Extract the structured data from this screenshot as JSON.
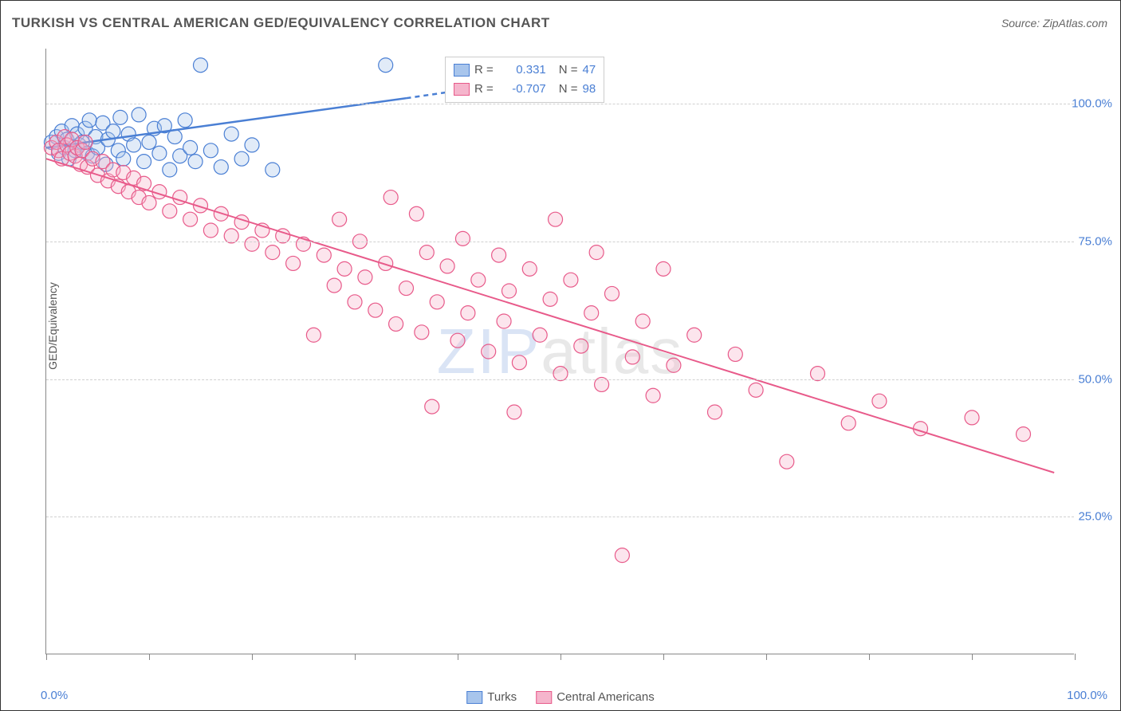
{
  "title": "TURKISH VS CENTRAL AMERICAN GED/EQUIVALENCY CORRELATION CHART",
  "source": "Source: ZipAtlas.com",
  "y_label": "GED/Equivalency",
  "watermark_a": "ZIP",
  "watermark_b": "atlas",
  "chart": {
    "type": "scatter",
    "background_color": "#ffffff",
    "grid_color": "#d0d0d0",
    "axis_color": "#888888",
    "xlim": [
      0,
      100
    ],
    "ylim": [
      0,
      110
    ],
    "xtick_labels": [
      {
        "pos": 0,
        "label": "0.0%",
        "show_label": true
      },
      {
        "pos": 10,
        "show_label": false
      },
      {
        "pos": 20,
        "show_label": false
      },
      {
        "pos": 30,
        "show_label": false
      },
      {
        "pos": 40,
        "show_label": false
      },
      {
        "pos": 50,
        "show_label": false
      },
      {
        "pos": 60,
        "show_label": false
      },
      {
        "pos": 70,
        "show_label": false
      },
      {
        "pos": 80,
        "show_label": false
      },
      {
        "pos": 90,
        "show_label": false
      },
      {
        "pos": 100,
        "label": "100.0%",
        "show_label": true
      }
    ],
    "ytick_labels": [
      {
        "pos": 25,
        "label": "25.0%"
      },
      {
        "pos": 50,
        "label": "50.0%"
      },
      {
        "pos": 75,
        "label": "75.0%"
      },
      {
        "pos": 100,
        "label": "100.0%"
      }
    ],
    "marker_radius": 9,
    "marker_fill_opacity": 0.35,
    "marker_stroke_width": 1.2,
    "series": [
      {
        "name": "Turks",
        "color": "#4a7fd4",
        "fill": "#a8c5ec",
        "R": "0.331",
        "N": "47",
        "trend_solid": {
          "x1": 0,
          "y1": 92,
          "x2": 35,
          "y2": 101
        },
        "trend_dashed": {
          "x1": 35,
          "y1": 101,
          "x2": 48,
          "y2": 104.5
        },
        "trend_width": 2.5,
        "points": [
          [
            0.5,
            93
          ],
          [
            1,
            94
          ],
          [
            1.2,
            91
          ],
          [
            1.5,
            95
          ],
          [
            1.8,
            92
          ],
          [
            2,
            93.5
          ],
          [
            2.2,
            90
          ],
          [
            2.5,
            96
          ],
          [
            2.8,
            91.5
          ],
          [
            3,
            94.5
          ],
          [
            3.2,
            92.5
          ],
          [
            3.5,
            93
          ],
          [
            3.8,
            95.5
          ],
          [
            4,
            91
          ],
          [
            4.2,
            97
          ],
          [
            4.5,
            90.5
          ],
          [
            4.8,
            94
          ],
          [
            5,
            92
          ],
          [
            5.5,
            96.5
          ],
          [
            5.8,
            89
          ],
          [
            6,
            93.5
          ],
          [
            6.5,
            95
          ],
          [
            7,
            91.5
          ],
          [
            7.2,
            97.5
          ],
          [
            7.5,
            90
          ],
          [
            8,
            94.5
          ],
          [
            8.5,
            92.5
          ],
          [
            9,
            98
          ],
          [
            9.5,
            89.5
          ],
          [
            10,
            93
          ],
          [
            10.5,
            95.5
          ],
          [
            11,
            91
          ],
          [
            11.5,
            96
          ],
          [
            12,
            88
          ],
          [
            12.5,
            94
          ],
          [
            13,
            90.5
          ],
          [
            13.5,
            97
          ],
          [
            14,
            92
          ],
          [
            14.5,
            89.5
          ],
          [
            15,
            107
          ],
          [
            16,
            91.5
          ],
          [
            17,
            88.5
          ],
          [
            18,
            94.5
          ],
          [
            19,
            90
          ],
          [
            20,
            92.5
          ],
          [
            22,
            88
          ],
          [
            33,
            107
          ]
        ]
      },
      {
        "name": "Central Americans",
        "color": "#e85a8a",
        "fill": "#f5b5cc",
        "R": "-0.707",
        "N": "98",
        "trend_solid": {
          "x1": 0,
          "y1": 90,
          "x2": 98,
          "y2": 33
        },
        "trend_width": 2,
        "points": [
          [
            0.5,
            92
          ],
          [
            1,
            93
          ],
          [
            1.2,
            91.5
          ],
          [
            1.5,
            90
          ],
          [
            1.8,
            94
          ],
          [
            2,
            92.5
          ],
          [
            2.3,
            91
          ],
          [
            2.5,
            93.5
          ],
          [
            2.8,
            90.5
          ],
          [
            3,
            92
          ],
          [
            3.3,
            89
          ],
          [
            3.5,
            91.5
          ],
          [
            3.8,
            93
          ],
          [
            4,
            88.5
          ],
          [
            4.5,
            90
          ],
          [
            5,
            87
          ],
          [
            5.5,
            89.5
          ],
          [
            6,
            86
          ],
          [
            6.5,
            88
          ],
          [
            7,
            85
          ],
          [
            7.5,
            87.5
          ],
          [
            8,
            84
          ],
          [
            8.5,
            86.5
          ],
          [
            9,
            83
          ],
          [
            9.5,
            85.5
          ],
          [
            10,
            82
          ],
          [
            11,
            84
          ],
          [
            12,
            80.5
          ],
          [
            13,
            83
          ],
          [
            14,
            79
          ],
          [
            15,
            81.5
          ],
          [
            16,
            77
          ],
          [
            17,
            80
          ],
          [
            18,
            76
          ],
          [
            19,
            78.5
          ],
          [
            20,
            74.5
          ],
          [
            21,
            77
          ],
          [
            22,
            73
          ],
          [
            23,
            76
          ],
          [
            24,
            71
          ],
          [
            25,
            74.5
          ],
          [
            26,
            58
          ],
          [
            27,
            72.5
          ],
          [
            28,
            67
          ],
          [
            28.5,
            79
          ],
          [
            29,
            70
          ],
          [
            30,
            64
          ],
          [
            30.5,
            75
          ],
          [
            31,
            68.5
          ],
          [
            32,
            62.5
          ],
          [
            33,
            71
          ],
          [
            33.5,
            83
          ],
          [
            34,
            60
          ],
          [
            35,
            66.5
          ],
          [
            36,
            80
          ],
          [
            36.5,
            58.5
          ],
          [
            37,
            73
          ],
          [
            37.5,
            45
          ],
          [
            38,
            64
          ],
          [
            39,
            70.5
          ],
          [
            40,
            57
          ],
          [
            40.5,
            75.5
          ],
          [
            41,
            62
          ],
          [
            42,
            68
          ],
          [
            43,
            55
          ],
          [
            44,
            72.5
          ],
          [
            44.5,
            60.5
          ],
          [
            45,
            66
          ],
          [
            45.5,
            44
          ],
          [
            46,
            53
          ],
          [
            47,
            70
          ],
          [
            48,
            58
          ],
          [
            49,
            64.5
          ],
          [
            49.5,
            79
          ],
          [
            50,
            51
          ],
          [
            51,
            68
          ],
          [
            52,
            56
          ],
          [
            53,
            62
          ],
          [
            53.5,
            73
          ],
          [
            54,
            49
          ],
          [
            55,
            65.5
          ],
          [
            56,
            18
          ],
          [
            57,
            54
          ],
          [
            58,
            60.5
          ],
          [
            59,
            47
          ],
          [
            60,
            70
          ],
          [
            61,
            52.5
          ],
          [
            63,
            58
          ],
          [
            65,
            44
          ],
          [
            67,
            54.5
          ],
          [
            69,
            48
          ],
          [
            72,
            35
          ],
          [
            75,
            51
          ],
          [
            78,
            42
          ],
          [
            81,
            46
          ],
          [
            85,
            41
          ],
          [
            90,
            43
          ],
          [
            95,
            40
          ]
        ]
      }
    ]
  },
  "legend_bottom": [
    {
      "name": "Turks",
      "color": "#4a7fd4",
      "fill": "#a8c5ec"
    },
    {
      "name": "Central Americans",
      "color": "#e85a8a",
      "fill": "#f5b5cc"
    }
  ]
}
